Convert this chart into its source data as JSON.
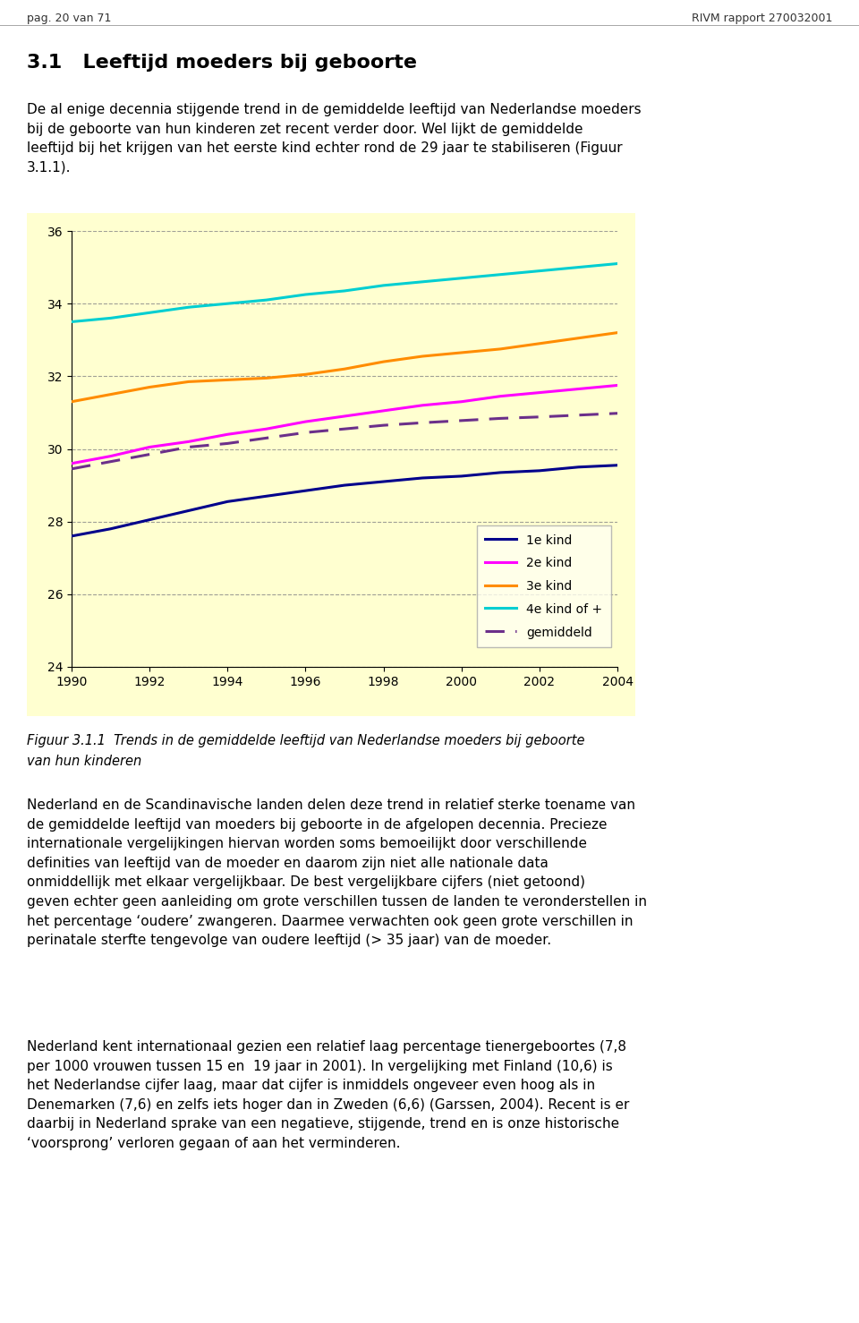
{
  "years": [
    1990,
    1991,
    1992,
    1993,
    1994,
    1995,
    1996,
    1997,
    1998,
    1999,
    2000,
    2001,
    2002,
    2003,
    2004
  ],
  "kind1": [
    27.6,
    27.8,
    28.05,
    28.3,
    28.55,
    28.7,
    28.85,
    29.0,
    29.1,
    29.2,
    29.25,
    29.35,
    29.4,
    29.5,
    29.55
  ],
  "kind2": [
    29.6,
    29.8,
    30.05,
    30.2,
    30.4,
    30.55,
    30.75,
    30.9,
    31.05,
    31.2,
    31.3,
    31.45,
    31.55,
    31.65,
    31.75
  ],
  "kind3": [
    31.3,
    31.5,
    31.7,
    31.85,
    31.9,
    31.95,
    32.05,
    32.2,
    32.4,
    32.55,
    32.65,
    32.75,
    32.9,
    33.05,
    33.2
  ],
  "kind4": [
    33.5,
    33.6,
    33.75,
    33.9,
    34.0,
    34.1,
    34.25,
    34.35,
    34.5,
    34.6,
    34.7,
    34.8,
    34.9,
    35.0,
    35.1
  ],
  "gemiddeld": [
    29.45,
    29.65,
    29.85,
    30.05,
    30.15,
    30.3,
    30.45,
    30.55,
    30.65,
    30.72,
    30.78,
    30.84,
    30.88,
    30.93,
    30.98
  ],
  "colors": {
    "kind1": "#00008B",
    "kind2": "#FF00FF",
    "kind3": "#FF8C00",
    "kind4": "#00CED1",
    "gemiddeld": "#6B2F8A"
  },
  "ylim": [
    24,
    36
  ],
  "yticks": [
    24,
    26,
    28,
    30,
    32,
    34,
    36
  ],
  "xticks": [
    1990,
    1992,
    1994,
    1996,
    1998,
    2000,
    2002,
    2004
  ],
  "chart_bg": "#FFFFF0",
  "header_left": "pag. 20 van 71",
  "header_right": "RIVM rapport 270032001",
  "section_title": "3.1   Leeftijd moeders bij geboorte",
  "body1": "De al enige decennia stijgende trend in de gemiddelde leeftijd van Nederlandse moeders\nbij de geboorte van hun kinderen zet recent verder door. Wel lijkt de gemiddelde\nleeftijd bij het krijgen van het eerste kind echter rond de 29 jaar te stabiliseren (Figuur\n3.1.1).",
  "caption_line1": "Figuur 3.1.1  Trends in de gemiddelde leeftijd van Nederlandse moeders bij geboorte",
  "caption_line2": "van hun kinderen",
  "body2": "Nederland en de Scandinavische landen delen deze trend in relatief sterke toename van\nde gemiddelde leeftijd van moeders bij geboorte in de afgelopen decennia. Precieze\ninternationale vergelijkingen hiervan worden soms bemoeilijkt door verschillende\ndefinities van leeftijd van de moeder en daarom zijn niet alle nationale data\nonmiddellijk met elkaar vergelijkbaar. De best vergelijkbare cijfers (niet getoond)\ngeven echter geen aanleiding om grote verschillen tussen de landen te veronderstellen in\nhet percentage ‘oudere’ zwangeren. Daarmee verwachten ook geen grote verschillen in\nperinatale sterfte tengevolge van oudere leeftijd (> 35 jaar) van de moeder.",
  "body3": "Nederland kent internationaal gezien een relatief laag percentage tienergeboortes (7,8\nper 1000 vrouwen tussen 15 en  19 jaar in 2001). In vergelijking met Finland (10,6) is\nhet Nederlandse cijfer laag, maar dat cijfer is inmiddels ongeveer even hoog als in\nDenemarken (7,6) en zelfs iets hoger dan in Zweden (6,6) (Garssen, 2004). Recent is er\ndaarbij in Nederland sprake van een negatieve, stijgende, trend en is onze historische\n‘voorsprong’ verloren gegaan of aan het verminderen.",
  "legend_labels": [
    "1e kind",
    "2e kind",
    "3e kind",
    "4e kind of +",
    "gemiddeld"
  ]
}
